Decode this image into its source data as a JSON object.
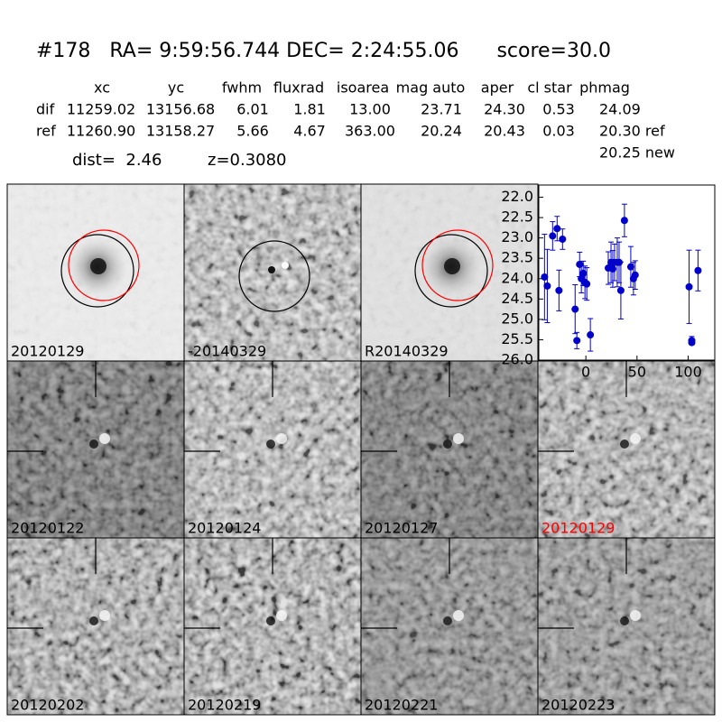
{
  "header": {
    "title": "#178   RA= 9:59:56.744 DEC= 2:24:55.06      score=30.0",
    "dist": "dist=  2.46",
    "z": "z=0.3080"
  },
  "table": {
    "columns": [
      "xc",
      "yc",
      "fwhm",
      "fluxrad",
      "isoarea",
      "mag auto",
      "aper",
      "cl star",
      "phmag"
    ],
    "rows": [
      [
        "dif",
        "11259.02",
        "13156.68",
        "6.01",
        "1.81",
        "13.00",
        "23.71",
        "24.30",
        "0.53",
        "24.09"
      ],
      [
        "ref",
        "11260.90",
        "13158.27",
        "5.66",
        "4.67",
        "363.00",
        "20.24",
        "20.43",
        "0.03",
        "20.30 ref"
      ]
    ],
    "extra": "20.25 new"
  },
  "stamps": [
    {
      "label": "20120129"
    },
    {
      "label": "-20140329"
    },
    {
      "label": "R20140329"
    },
    {
      "label": "20120122"
    },
    {
      "label": "20120124"
    },
    {
      "label": "20120127"
    },
    {
      "label": "20120129",
      "color": "#ff0000"
    },
    {
      "label": "20120202"
    },
    {
      "label": "20120219"
    },
    {
      "label": "20120221"
    },
    {
      "label": "20120223"
    }
  ],
  "chart_data": {
    "type": "scatter",
    "color": "#0000cc",
    "x": [
      -40.4,
      -37.7,
      -32.5,
      -28.1,
      -26.3,
      -22.8,
      -10.5,
      -8.8,
      -6.1,
      -4.4,
      -2.6,
      -0.9,
      0.9,
      4.4,
      21.9,
      24.6,
      26.3,
      28.1,
      30.7,
      32.5,
      34.2,
      37.7,
      43.9,
      46.5,
      48.2,
      100.9,
      103.5,
      103.5,
      109.6
    ],
    "values": [
      23.96,
      24.18,
      22.95,
      22.77,
      24.29,
      23.03,
      24.75,
      25.52,
      23.65,
      24.0,
      23.87,
      24.09,
      24.13,
      25.38,
      23.74,
      23.6,
      23.76,
      23.6,
      23.6,
      23.6,
      24.29,
      22.57,
      23.71,
      24.0,
      23.91,
      24.2,
      25.52,
      25.57,
      23.8
    ],
    "errors": [
      1.05,
      0.9,
      0.35,
      0.3,
      0.5,
      0.25,
      0.6,
      0.2,
      0.3,
      0.35,
      0.3,
      0.4,
      0.4,
      0.4,
      0.4,
      0.5,
      0.45,
      0.45,
      0.6,
      0.5,
      0.7,
      0.4,
      0.5,
      0.4,
      0.35,
      0.9,
      0.1,
      0.05,
      0.5
    ],
    "xlim": [
      -46,
      126
    ],
    "ylim": [
      26.0,
      21.7
    ],
    "xticks": [
      0,
      50,
      100
    ],
    "yticks": [
      {
        "value": 22.0,
        "label": "22.0"
      },
      {
        "value": 22.5,
        "label": "22.5"
      },
      {
        "value": 23.0,
        "label": "23.0"
      },
      {
        "value": 23.5,
        "label": "23.5"
      },
      {
        "value": 24.0,
        "label": "24.0"
      },
      {
        "value": 24.5,
        "label": "24.5"
      },
      {
        "value": 25.0,
        "label": "25.0"
      },
      {
        "value": 25.5,
        "label": "25.5"
      },
      {
        "value": 26.0,
        "label": "26.0"
      }
    ]
  }
}
